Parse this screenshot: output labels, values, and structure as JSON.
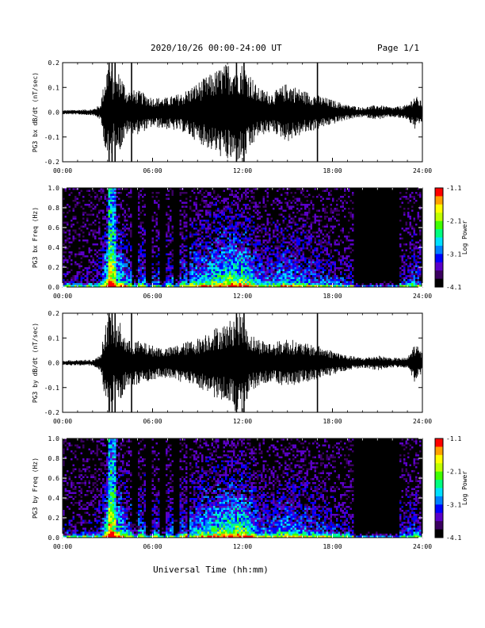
{
  "header": {
    "title": "2020/10/26  00:00-24:00 UT",
    "page": "Page 1/1"
  },
  "chart_data": [
    {
      "type": "line",
      "title": "",
      "xlabel": "",
      "ylabel": "PG3 bx dB/dt (nT/sec)",
      "xlim": [
        0,
        24
      ],
      "ylim": [
        -0.2,
        0.2
      ],
      "x_tick_labels": [
        "00:00",
        "06:00",
        "12:00",
        "18:00",
        "24:00"
      ],
      "y_tick_labels": [
        "-0.2",
        "-0.1",
        "0.0",
        "0.1",
        "0.2"
      ],
      "series": [
        {
          "x": [
            0,
            1,
            2,
            2.5,
            3,
            3.2,
            3.4,
            3.8,
            4.3,
            5,
            6,
            7,
            8,
            9,
            10,
            11,
            11.5,
            12,
            12.5,
            13,
            14,
            15,
            16,
            17,
            18,
            19,
            20,
            21,
            22,
            23,
            23.5,
            24
          ],
          "y": [
            0.008,
            0.01,
            0.012,
            0.03,
            0.2,
            0.2,
            0.12,
            0.17,
            0.09,
            0.09,
            0.06,
            0.06,
            0.08,
            0.12,
            0.16,
            0.2,
            0.2,
            0.2,
            0.16,
            0.1,
            0.08,
            0.12,
            0.09,
            0.07,
            0.05,
            0.03,
            0.02,
            0.03,
            0.02,
            0.03,
            0.07,
            0.04
          ],
          "y_low": [
            -0.008,
            -0.01,
            -0.012,
            -0.03,
            -0.2,
            -0.2,
            -0.12,
            -0.16,
            -0.09,
            -0.09,
            -0.06,
            -0.07,
            -0.08,
            -0.12,
            -0.16,
            -0.2,
            -0.2,
            -0.2,
            -0.16,
            -0.1,
            -0.08,
            -0.12,
            -0.09,
            -0.07,
            -0.05,
            -0.03,
            -0.02,
            -0.03,
            -0.02,
            -0.03,
            -0.07,
            -0.04
          ]
        }
      ]
    },
    {
      "type": "heatmap",
      "title": "",
      "xlabel": "",
      "ylabel": "PG3 bx Freq (Hz)",
      "xlim": [
        0,
        24
      ],
      "ylim": [
        0,
        1.0
      ],
      "x_tick_labels": [
        "00:00",
        "06:00",
        "12:00",
        "18:00",
        "24:00"
      ],
      "y_tick_labels": [
        "0.0",
        "0.2",
        "0.4",
        "0.6",
        "0.8",
        "1.0"
      ],
      "colorbar": {
        "label": "Log Power",
        "range": [
          -4.1,
          -1.1
        ],
        "tick_labels": [
          "-1.1",
          "-2.1",
          "-3.1",
          "-4.1"
        ]
      }
    },
    {
      "type": "line",
      "title": "",
      "xlabel": "",
      "ylabel": "PG3 by dB/dt (nT/sec)",
      "xlim": [
        0,
        24
      ],
      "ylim": [
        -0.2,
        0.2
      ],
      "x_tick_labels": [
        "00:00",
        "06:00",
        "12:00",
        "18:00",
        "24:00"
      ],
      "y_tick_labels": [
        "-0.2",
        "-0.1",
        "0.0",
        "0.1",
        "0.2"
      ],
      "series": [
        {
          "x": [
            0,
            1,
            2,
            2.5,
            3,
            3.2,
            3.4,
            3.8,
            4.3,
            5,
            6,
            7,
            8,
            9,
            10,
            11,
            11.5,
            12,
            12.5,
            13,
            14,
            15,
            16,
            17,
            18,
            19,
            20,
            21,
            22,
            23,
            23.5,
            24
          ],
          "y": [
            0.01,
            0.012,
            0.012,
            0.03,
            0.2,
            0.2,
            0.14,
            0.17,
            0.09,
            0.09,
            0.07,
            0.06,
            0.08,
            0.1,
            0.14,
            0.16,
            0.2,
            0.2,
            0.12,
            0.1,
            0.08,
            0.1,
            0.08,
            0.07,
            0.05,
            0.03,
            0.02,
            0.03,
            0.02,
            0.02,
            0.08,
            0.04
          ],
          "y_low": [
            -0.01,
            -0.012,
            -0.012,
            -0.03,
            -0.2,
            -0.2,
            -0.14,
            -0.16,
            -0.09,
            -0.09,
            -0.07,
            -0.06,
            -0.08,
            -0.1,
            -0.14,
            -0.16,
            -0.2,
            -0.2,
            -0.12,
            -0.1,
            -0.08,
            -0.1,
            -0.08,
            -0.07,
            -0.05,
            -0.03,
            -0.02,
            -0.03,
            -0.02,
            -0.02,
            -0.08,
            -0.04
          ]
        }
      ]
    },
    {
      "type": "heatmap",
      "title": "",
      "xlabel": "Universal Time (hh:mm)",
      "ylabel": "PG3 by Freq (Hz)",
      "xlim": [
        0,
        24
      ],
      "ylim": [
        0,
        1.0
      ],
      "x_tick_labels": [
        "00:00",
        "06:00",
        "12:00",
        "18:00",
        "24:00"
      ],
      "y_tick_labels": [
        "0.0",
        "0.2",
        "0.4",
        "0.6",
        "0.8",
        "1.0"
      ],
      "colorbar": {
        "label": "Log Power",
        "range": [
          -4.1,
          -1.1
        ],
        "tick_labels": [
          "-1.1",
          "-2.1",
          "-3.1",
          "-4.1"
        ]
      }
    }
  ],
  "colors": {
    "trace": "#000000",
    "background": "#ffffff",
    "colormap": [
      "#000000",
      "#3a0060",
      "#5a00c8",
      "#0000ff",
      "#0080ff",
      "#00e0ff",
      "#00ff80",
      "#40ff00",
      "#c0ff00",
      "#ffff00",
      "#ffa000",
      "#ff0000"
    ]
  }
}
